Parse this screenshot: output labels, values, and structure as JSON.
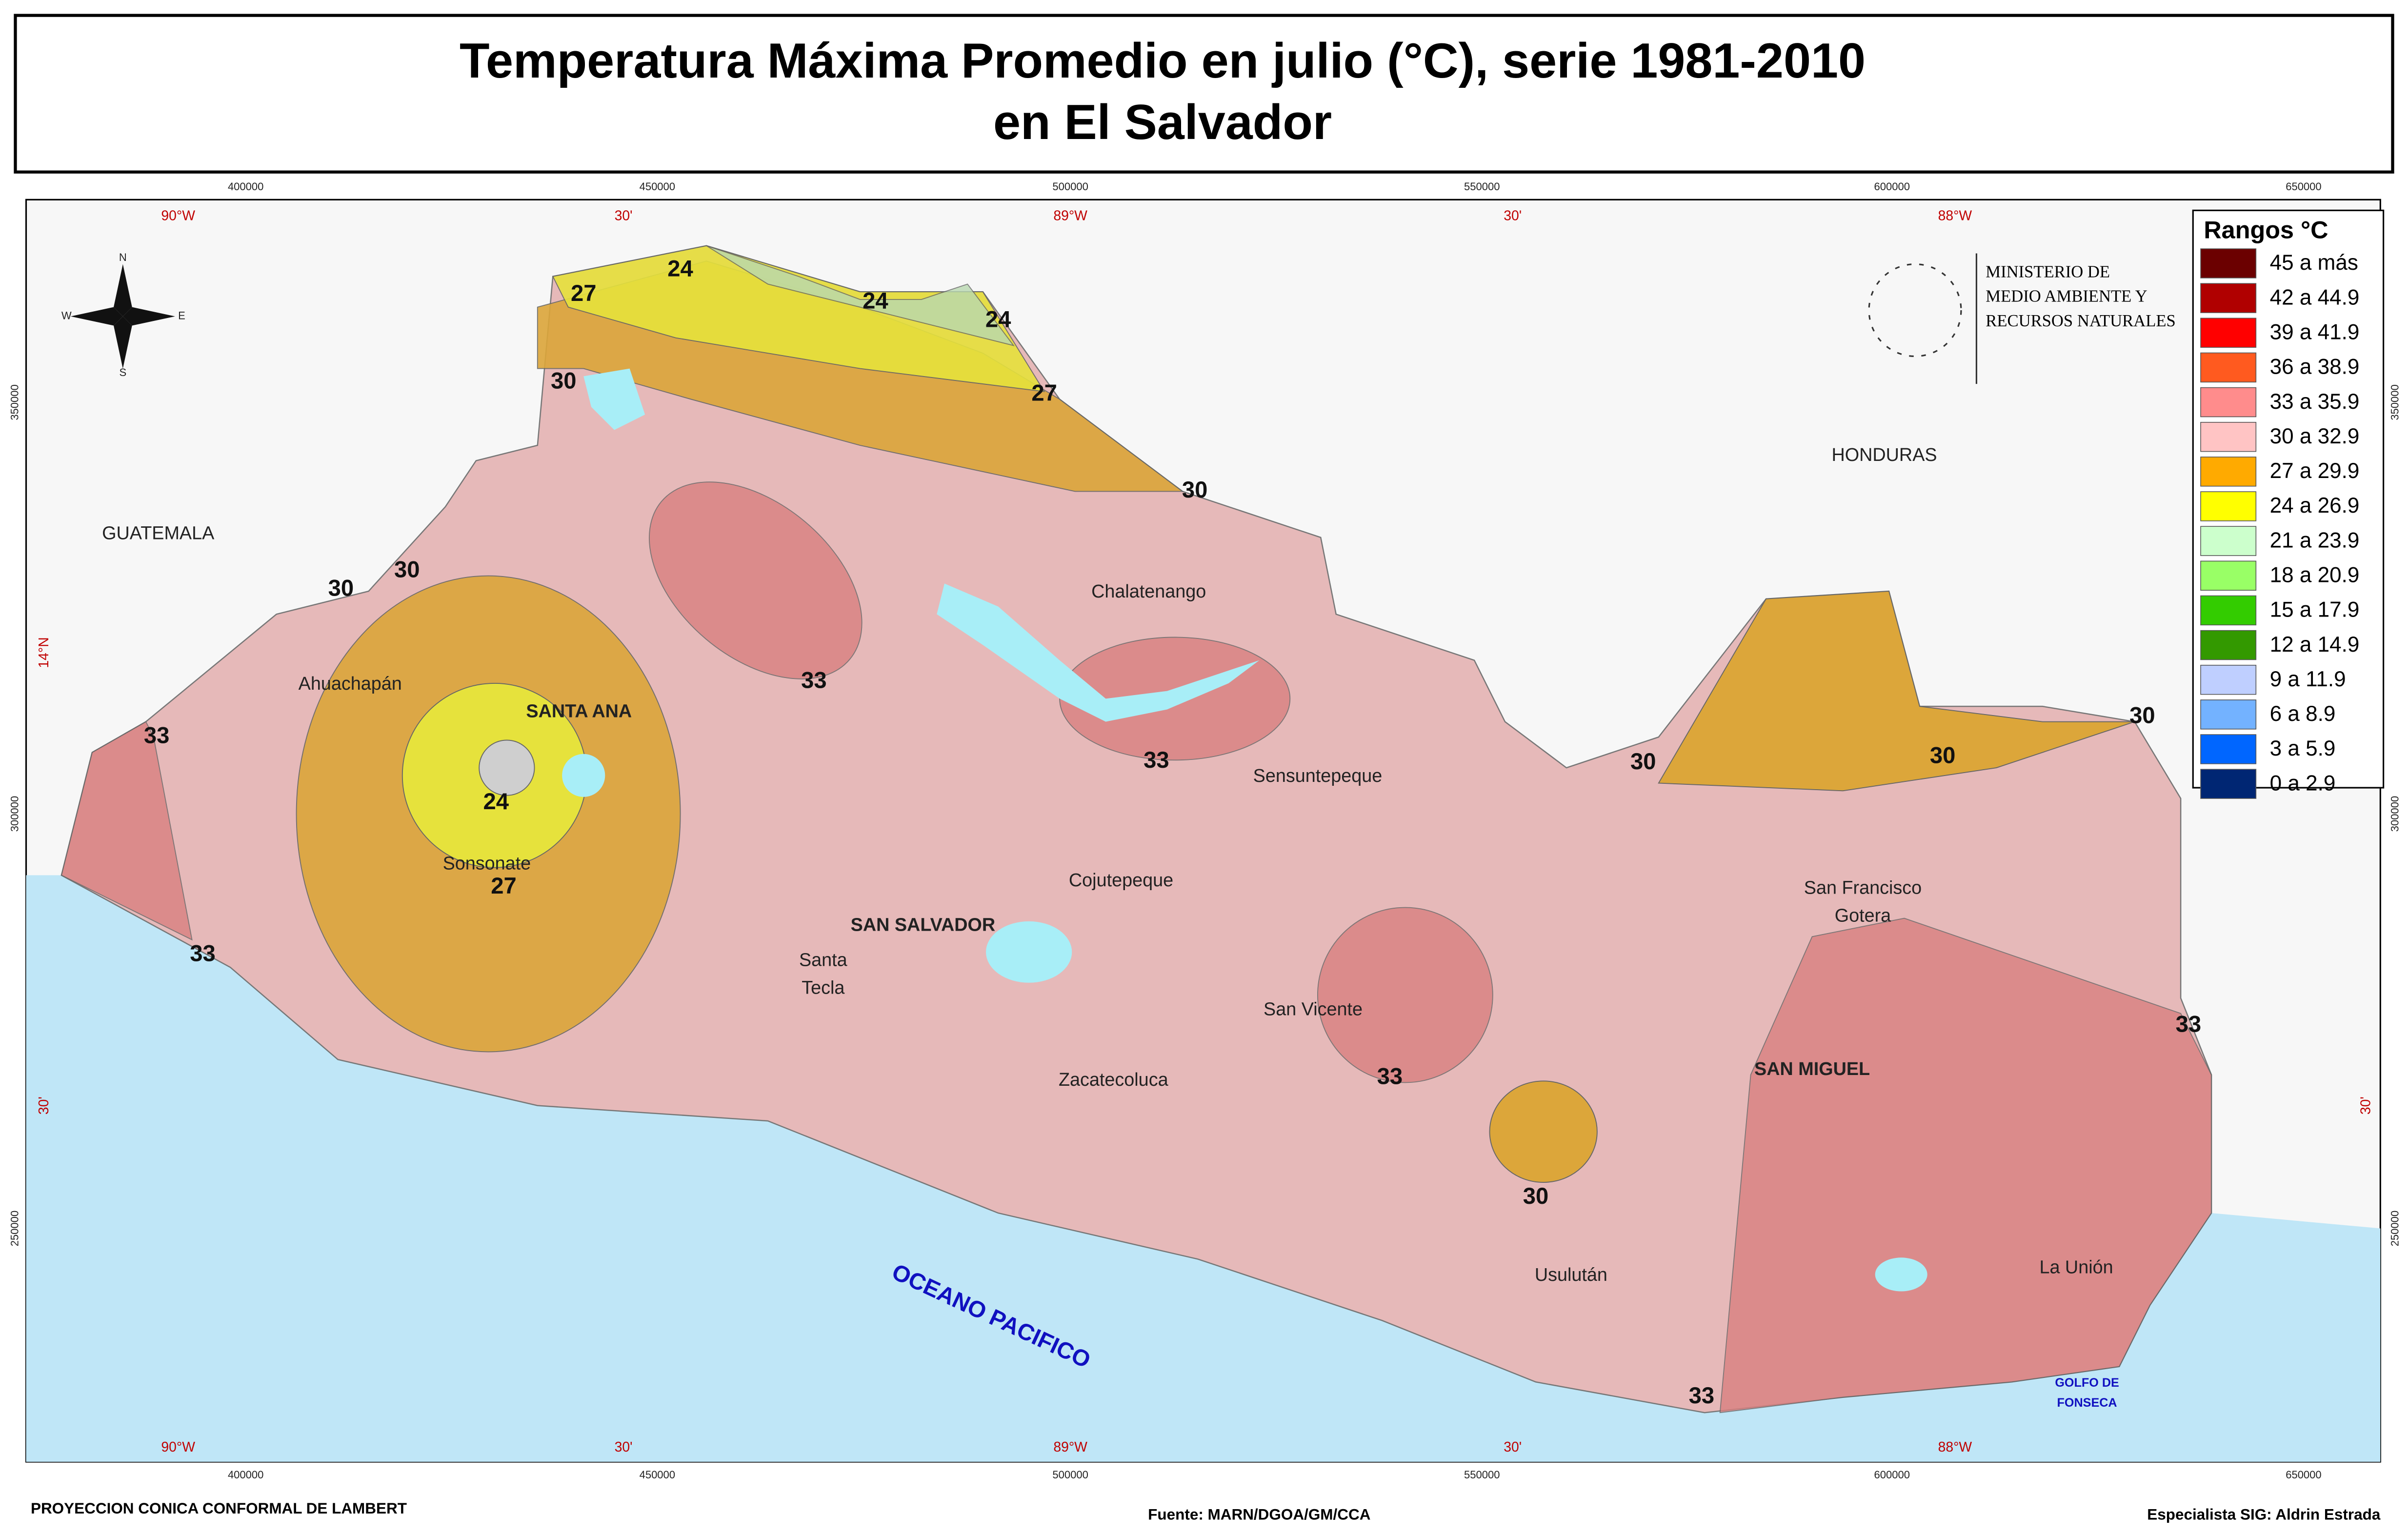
{
  "title": [
    "Temperatura Máxima Promedio en julio (°C), serie 1981-2010",
    "en El Salvador"
  ],
  "legend": {
    "title": "Rangos °C",
    "items": [
      {
        "label": "45 a más",
        "color": "#6b0000"
      },
      {
        "label": "42 a 44.9",
        "color": "#b00000"
      },
      {
        "label": "39 a 41.9",
        "color": "#ff0000"
      },
      {
        "label": "36 a 38.9",
        "color": "#ff5a1f"
      },
      {
        "label": "33 a 35.9",
        "color": "#ff8c8c"
      },
      {
        "label": "30 a 32.9",
        "color": "#ffc4c4"
      },
      {
        "label": "27 a 29.9",
        "color": "#ffaa00"
      },
      {
        "label": "24 a 26.9",
        "color": "#ffff00"
      },
      {
        "label": "21 a 23.9",
        "color": "#ccffcc"
      },
      {
        "label": "18 a 20.9",
        "color": "#99ff66"
      },
      {
        "label": "15 a 17.9",
        "color": "#33cc00"
      },
      {
        "label": "12 a 14.9",
        "color": "#339900"
      },
      {
        "label": "9 a 11.9",
        "color": "#bfcfff"
      },
      {
        "label": "6 a 8.9",
        "color": "#73b2ff"
      },
      {
        "label": "3 a 5.9",
        "color": "#0066ff"
      },
      {
        "label": "0 a 2.9",
        "color": "#002673"
      }
    ]
  },
  "ministry": [
    "MINISTERIO DE",
    "MEDIO AMBIENTE Y",
    "RECURSOS NATURALES"
  ],
  "compass": [
    "N",
    "E",
    "S",
    "W"
  ],
  "grid": {
    "eastings": [
      "400000",
      "450000",
      "500000",
      "550000",
      "600000",
      "650000"
    ],
    "longitudes": [
      "90°W",
      "30'",
      "89°W",
      "30'",
      "88°W"
    ],
    "northings": [
      "350000",
      "300000",
      "250000"
    ],
    "latitudes": [
      "14°N",
      "30'"
    ]
  },
  "places": [
    "GUATEMALA",
    "HONDURAS",
    "Chalatenango",
    "Ahuachapán",
    "SANTA ANA",
    "Sensuntepeque",
    "Sonsonate",
    "Cojutepeque",
    "SAN SALVADOR",
    "Santa",
    "Tecla",
    "San Vicente",
    "Zacatecoluca",
    "San Francisco",
    "Gotera",
    "SAN MIGUEL",
    "Usulután",
    "La Unión"
  ],
  "ocean": "OCEANO PACIFICO",
  "gulf": [
    "GOLFO DE",
    "FONSECA"
  ],
  "isolines": [
    27,
    24,
    24,
    24,
    27,
    30,
    30,
    30,
    30,
    33,
    33,
    30,
    30,
    30,
    33,
    24,
    27,
    33,
    33,
    33,
    30,
    33
  ],
  "footer": {
    "projection": "PROYECCION CONICA CONFORMAL DE LAMBERT",
    "source": "Fuente: MARN/DGOA/GM/CCA",
    "author": "Especialista SIG: Aldrin Estrada"
  }
}
